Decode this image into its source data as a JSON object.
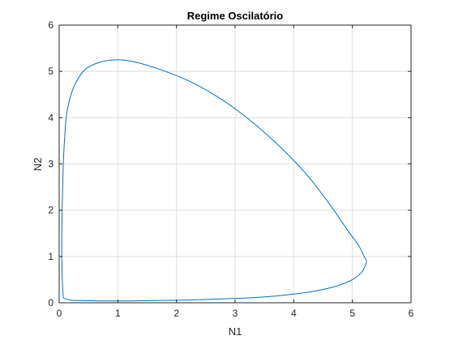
{
  "chart_data": {
    "type": "line",
    "title": "Regime Oscilatório",
    "xlabel": "N1",
    "ylabel": "N2",
    "xlim": [
      0,
      6
    ],
    "ylim": [
      0,
      6
    ],
    "xticks": [
      "0",
      "1",
      "2",
      "3",
      "4",
      "5",
      "6"
    ],
    "yticks": [
      "0",
      "1",
      "2",
      "3",
      "4",
      "5",
      "6"
    ],
    "grid": true,
    "series": [
      {
        "color": "#0072bd",
        "points": [
          [
            0.07,
            0.12
          ],
          [
            0.06,
            0.3
          ],
          [
            0.05,
            0.6
          ],
          [
            0.045,
            1.0
          ],
          [
            0.045,
            1.5
          ],
          [
            0.05,
            2.0
          ],
          [
            0.06,
            2.5
          ],
          [
            0.07,
            3.0
          ],
          [
            0.09,
            3.5
          ],
          [
            0.12,
            4.0
          ],
          [
            0.18,
            4.4
          ],
          [
            0.28,
            4.75
          ],
          [
            0.45,
            5.05
          ],
          [
            0.7,
            5.2
          ],
          [
            1.0,
            5.25
          ],
          [
            1.3,
            5.2
          ],
          [
            1.7,
            5.05
          ],
          [
            2.2,
            4.8
          ],
          [
            2.7,
            4.45
          ],
          [
            3.2,
            4.0
          ],
          [
            3.7,
            3.45
          ],
          [
            4.2,
            2.8
          ],
          [
            4.6,
            2.15
          ],
          [
            4.9,
            1.6
          ],
          [
            5.1,
            1.25
          ],
          [
            5.2,
            1.0
          ],
          [
            5.24,
            0.9
          ],
          [
            5.22,
            0.8
          ],
          [
            5.15,
            0.65
          ],
          [
            5.0,
            0.5
          ],
          [
            4.7,
            0.35
          ],
          [
            4.3,
            0.24
          ],
          [
            3.8,
            0.16
          ],
          [
            3.3,
            0.11
          ],
          [
            2.7,
            0.08
          ],
          [
            2.2,
            0.06
          ],
          [
            1.7,
            0.05
          ],
          [
            1.2,
            0.04
          ],
          [
            0.8,
            0.04
          ],
          [
            0.5,
            0.045
          ],
          [
            0.3,
            0.05
          ],
          [
            0.18,
            0.06
          ],
          [
            0.12,
            0.08
          ],
          [
            0.08,
            0.1
          ],
          [
            0.07,
            0.12
          ]
        ]
      }
    ]
  }
}
